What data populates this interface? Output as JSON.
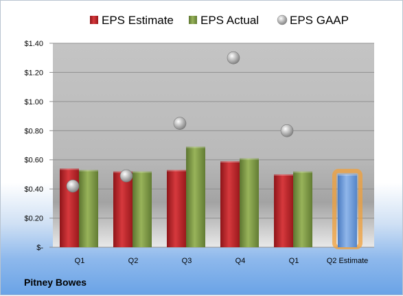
{
  "company": "Pitney Bowes",
  "chart_data": {
    "type": "bar",
    "categories": [
      "Q1",
      "Q2",
      "Q3",
      "Q4",
      "Q1",
      "Q2 Estimate"
    ],
    "series": [
      {
        "name": "EPS Estimate",
        "values": [
          0.54,
          0.52,
          0.53,
          0.59,
          0.5,
          null
        ],
        "color": "#c0262c"
      },
      {
        "name": "EPS Actual",
        "values": [
          0.53,
          0.52,
          0.69,
          0.61,
          0.52,
          null
        ],
        "color": "#7f9a45"
      },
      {
        "name": "EPS GAAP",
        "type": "scatter",
        "values": [
          0.42,
          0.49,
          0.85,
          1.3,
          0.8,
          null
        ],
        "color": "#a8a8a8"
      },
      {
        "name": "Q2 Estimate",
        "values": [
          null,
          null,
          null,
          null,
          null,
          0.5
        ],
        "color": "#6e9ad8",
        "highlight": "#f2a03a"
      }
    ],
    "ylim": [
      0,
      1.4
    ],
    "yticks": [
      "$-",
      "$0.20",
      "$0.40",
      "$0.60",
      "$0.80",
      "$1.00",
      "$1.20",
      "$1.40"
    ],
    "grid": true,
    "legend": "top"
  }
}
